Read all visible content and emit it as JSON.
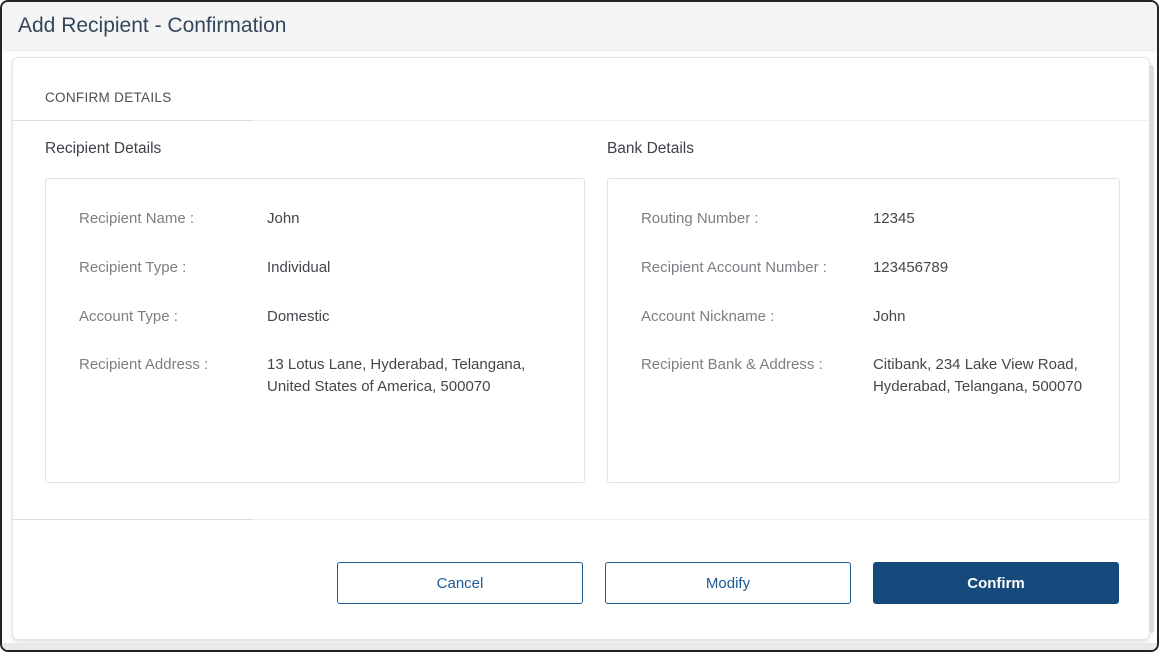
{
  "page": {
    "title": "Add Recipient - Confirmation"
  },
  "card": {
    "section_header": "CONFIRM DETAILS",
    "panels": [
      {
        "heading": "Recipient Details",
        "rows": [
          {
            "label": "Recipient Name :",
            "value": "John"
          },
          {
            "label": "Recipient Type :",
            "value": "Individual"
          },
          {
            "label": "Account Type :",
            "value": "Domestic"
          },
          {
            "label": "Recipient Address :",
            "value": "13 Lotus Lane, Hyderabad, Telangana, United States of America, 500070"
          }
        ]
      },
      {
        "heading": "Bank Details",
        "rows": [
          {
            "label": "Routing Number :",
            "value": "12345"
          },
          {
            "label": "Recipient Account Number :",
            "value": "123456789"
          },
          {
            "label": "Account Nickname :",
            "value": "John"
          },
          {
            "label": "Recipient Bank & Address :",
            "value": "Citibank, 234 Lake View Road, Hyderabad, Telangana, 500070"
          }
        ]
      }
    ]
  },
  "buttons": {
    "cancel": "Cancel",
    "modify": "Modify",
    "confirm": "Confirm"
  },
  "colors": {
    "primary_navy": "#164a7d",
    "outline_blue": "#1c5a96",
    "title_text": "#34475a",
    "label_gray": "#7b7e83",
    "value_dark": "#43474c",
    "header_bg": "#f5f5f6"
  }
}
